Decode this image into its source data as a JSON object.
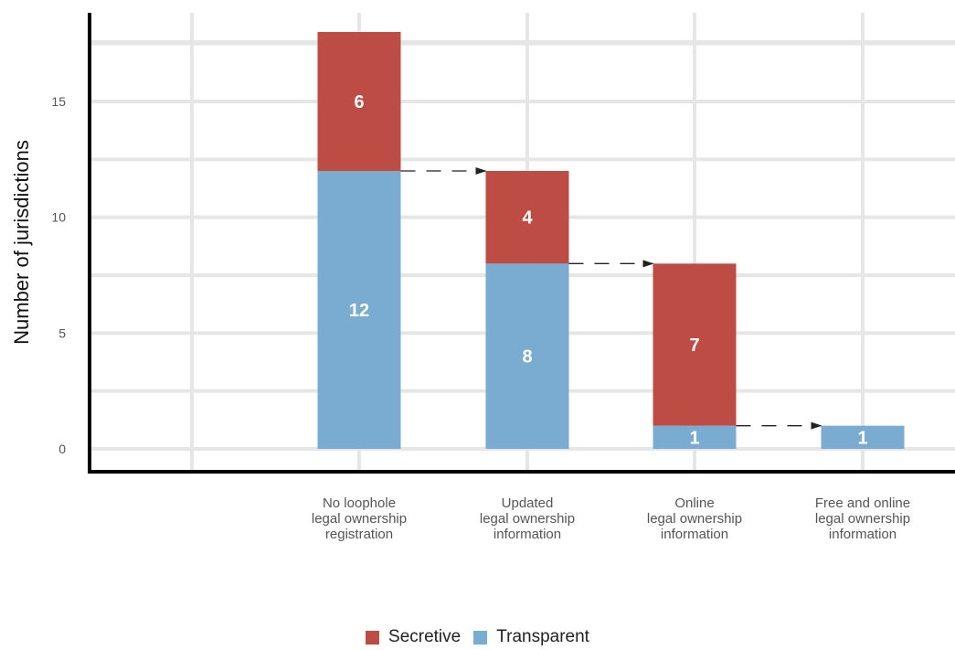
{
  "chart_data": {
    "type": "bar",
    "stacked": true,
    "ylabel": "Number of jurisdictions",
    "xlabel": "",
    "ylim": [
      0,
      18
    ],
    "yticks": [
      0,
      5,
      10,
      15
    ],
    "grid": true,
    "legend_placement": "bottom",
    "categories": [
      [
        "No loophole",
        "legal ownership",
        "registration"
      ],
      [
        "Updated",
        "legal ownership",
        "information"
      ],
      [
        "Online",
        "legal ownership",
        "information"
      ],
      [
        "Free and online",
        "legal ownership",
        "information"
      ]
    ],
    "series": [
      {
        "name": "Transparent",
        "color": "#7aabd0",
        "values": [
          12,
          8,
          1,
          1
        ],
        "labels": [
          "12",
          "8",
          "1",
          "1"
        ]
      },
      {
        "name": "Secretive",
        "color": "#bd4d44",
        "values": [
          6,
          4,
          7,
          0
        ],
        "labels": [
          "6",
          "4",
          "7",
          ""
        ]
      }
    ],
    "legend_order": [
      "Secretive",
      "Transparent"
    ],
    "arrows": [
      {
        "from": 0,
        "to": 1,
        "value": 12
      },
      {
        "from": 1,
        "to": 2,
        "value": 8
      },
      {
        "from": 2,
        "to": 3,
        "value": 1
      }
    ]
  }
}
